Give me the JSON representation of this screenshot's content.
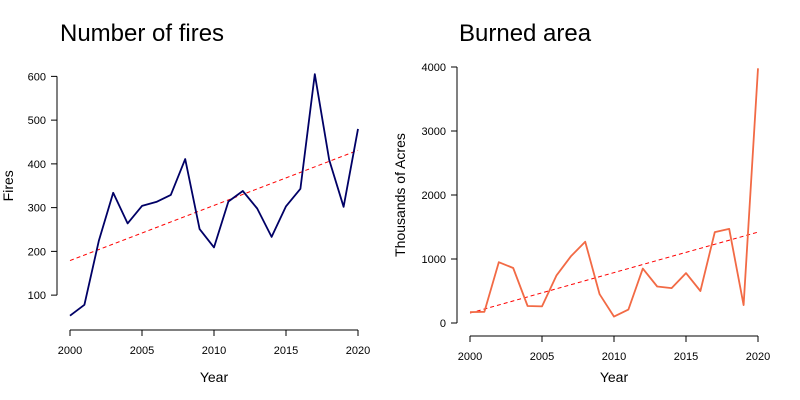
{
  "chart_data": [
    {
      "type": "line",
      "title": "Number of fires",
      "xlabel": "Year",
      "ylabel": "Fires",
      "xlim": [
        2000,
        2020
      ],
      "ylim": [
        50,
        610
      ],
      "x_ticks": [
        2000,
        2005,
        2010,
        2015,
        2020
      ],
      "y_ticks": [
        100,
        200,
        300,
        400,
        500,
        600
      ],
      "grid": false,
      "series": [
        {
          "color": "#000066",
          "x": [
            2000,
            2001,
            2002,
            2003,
            2004,
            2005,
            2006,
            2007,
            2008,
            2009,
            2010,
            2011,
            2012,
            2013,
            2014,
            2015,
            2016,
            2017,
            2018,
            2019,
            2020
          ],
          "values": [
            53,
            78,
            224,
            334,
            264,
            304,
            313,
            329,
            411,
            251,
            209,
            314,
            338,
            298,
            233,
            303,
            343,
            605,
            409,
            302,
            480
          ]
        }
      ],
      "trendline": {
        "color": "#ff0000",
        "style": "dashed",
        "x": [
          2000,
          2020
        ],
        "y": [
          179,
          431
        ]
      }
    },
    {
      "type": "line",
      "title": "Burned area",
      "xlabel": "Year",
      "ylabel": "Thousands of Acres",
      "xlim": [
        2000,
        2020
      ],
      "ylim": [
        0,
        4000
      ],
      "x_ticks": [
        2000,
        2005,
        2010,
        2015,
        2020
      ],
      "y_ticks": [
        0,
        1000,
        2000,
        3000,
        4000
      ],
      "grid": false,
      "series": [
        {
          "color": "#f26a45",
          "x": [
            2000,
            2001,
            2002,
            2003,
            2004,
            2005,
            2006,
            2007,
            2008,
            2009,
            2010,
            2011,
            2012,
            2013,
            2014,
            2015,
            2016,
            2017,
            2018,
            2019,
            2020
          ],
          "values": [
            170,
            175,
            950,
            860,
            265,
            260,
            740,
            1040,
            1270,
            450,
            100,
            210,
            850,
            570,
            545,
            780,
            500,
            1420,
            1470,
            280,
            3980
          ]
        }
      ],
      "trendline": {
        "color": "#ff0000",
        "style": "dashed",
        "x": [
          2000,
          2020
        ],
        "y": [
          155,
          1420
        ]
      }
    }
  ]
}
